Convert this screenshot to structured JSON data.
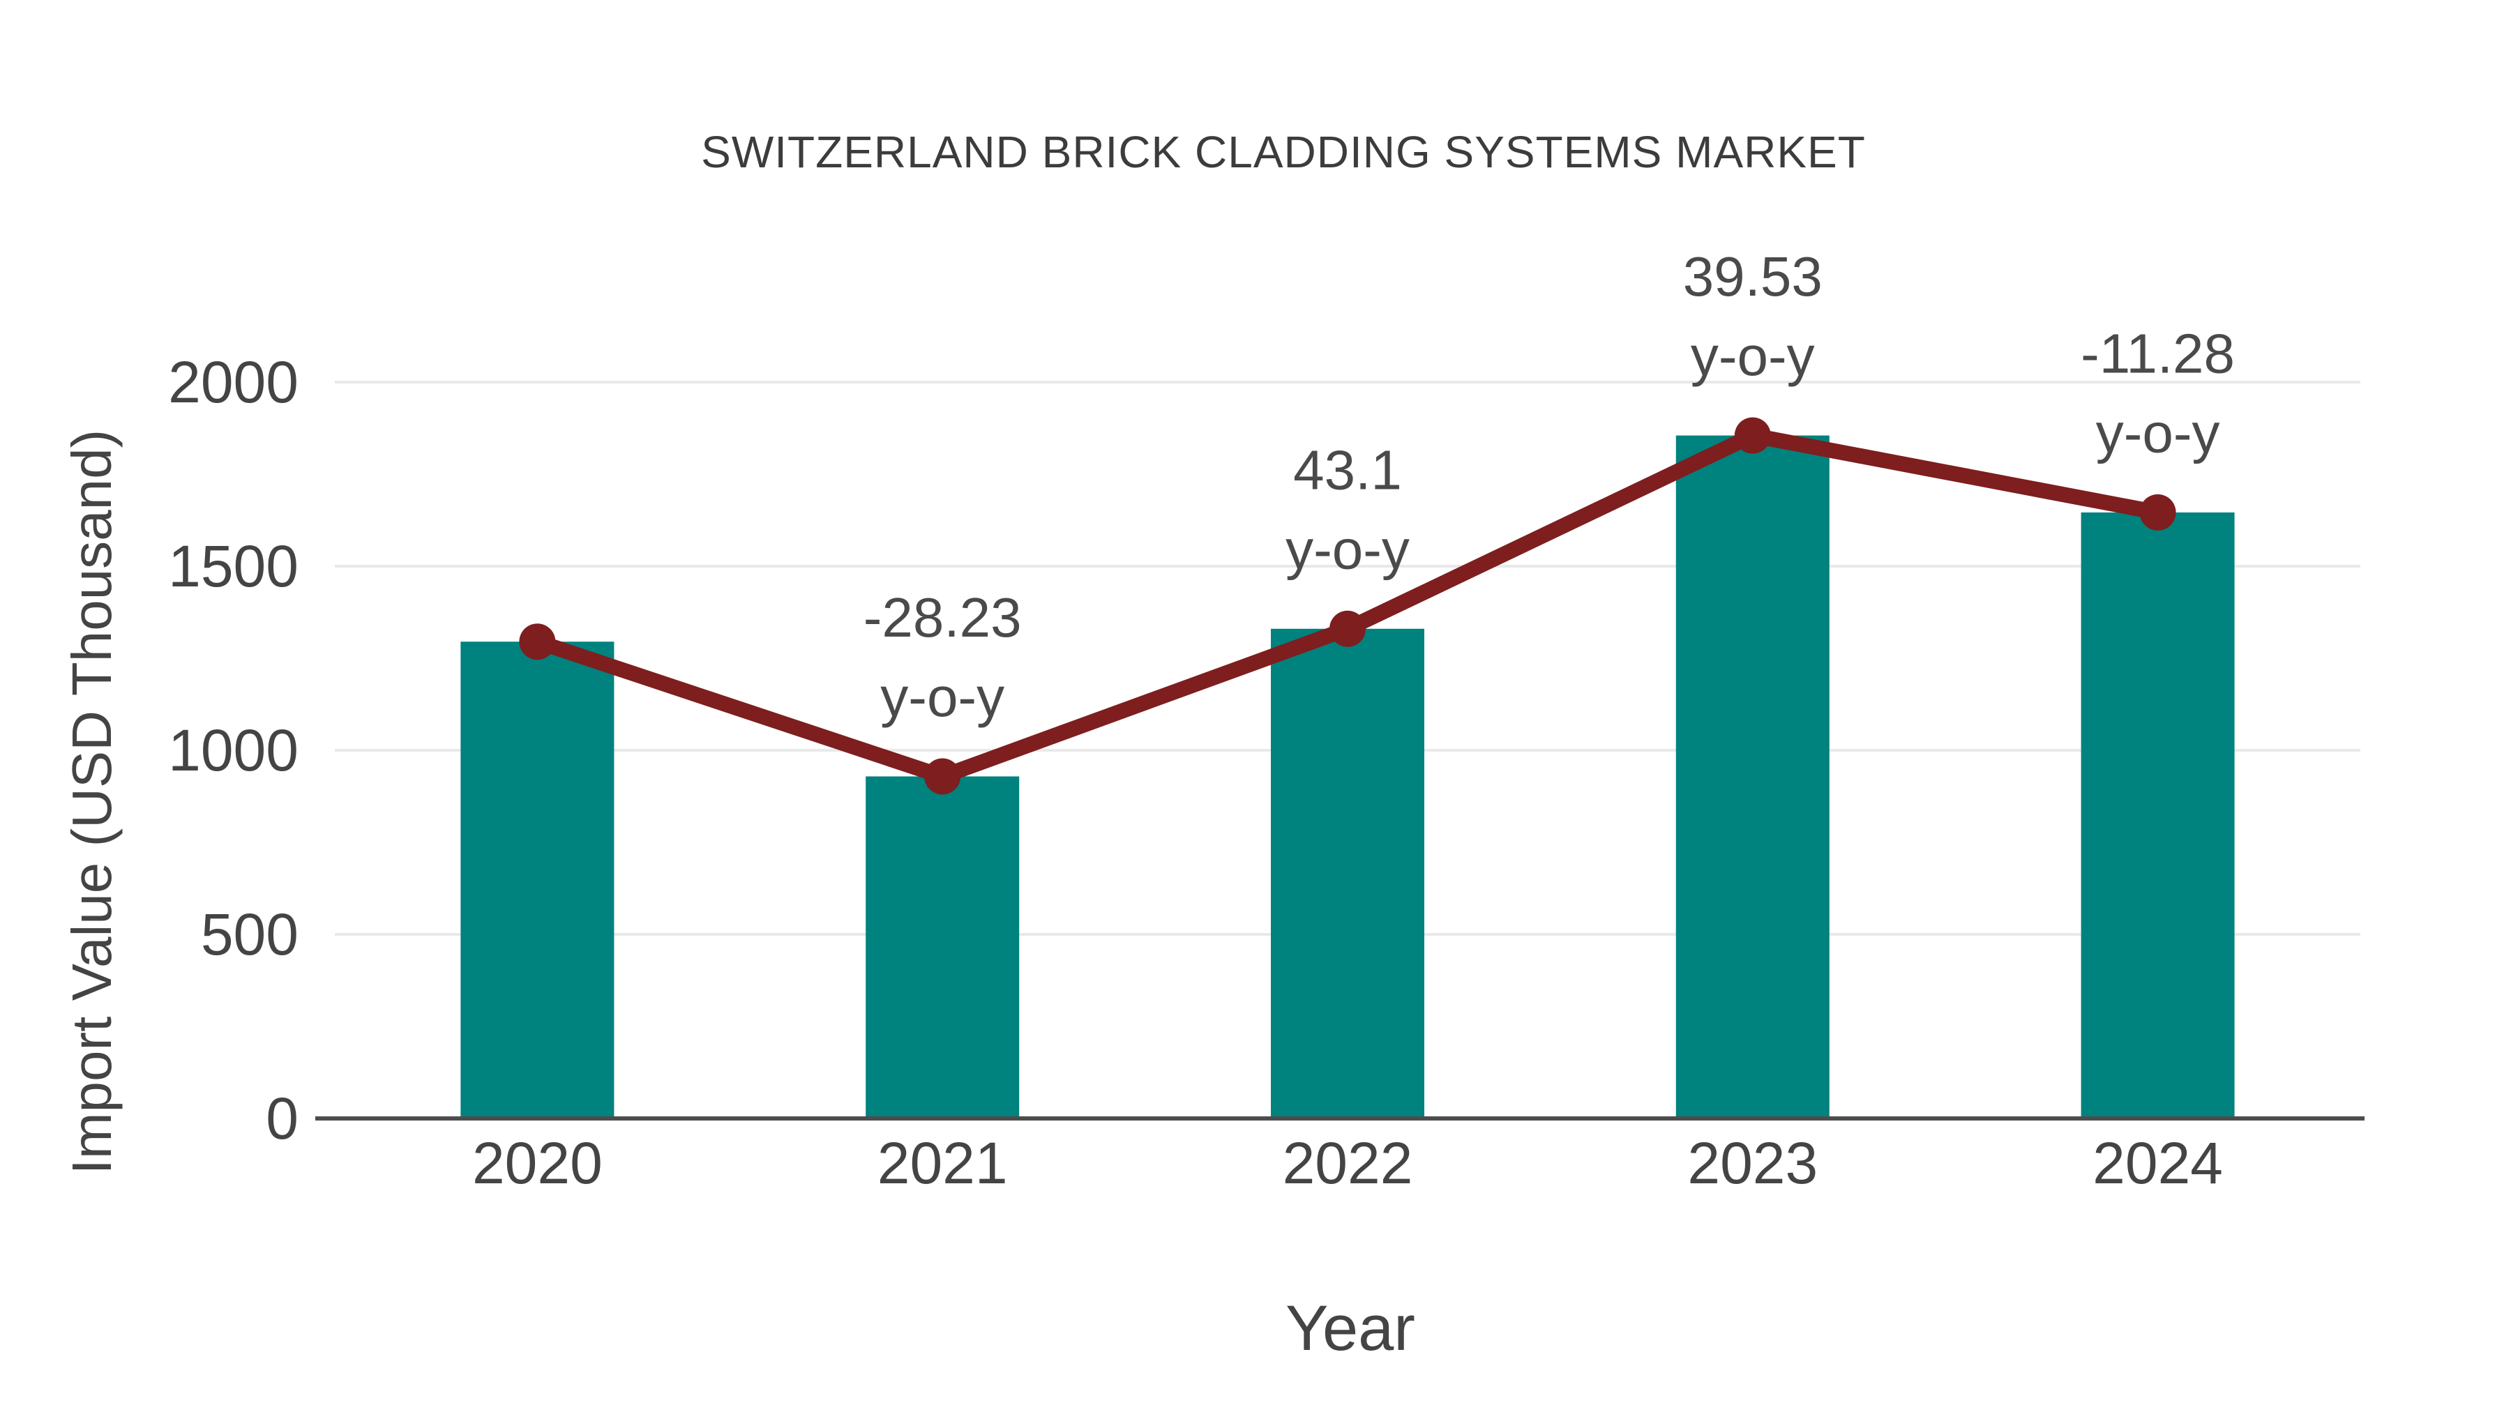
{
  "chart_data": {
    "type": "bar+line",
    "title": "SWITZERLAND BRICK CLADDING SYSTEMS MARKET",
    "xlabel": "Year",
    "ylabel": "Import Value (USD Thousand)",
    "categories": [
      "2020",
      "2021",
      "2022",
      "2023",
      "2024"
    ],
    "series": [
      {
        "name": "Import Value (USD Thousand) - bars",
        "type": "bar",
        "values": [
          1295,
          929,
          1330,
          1855,
          1646
        ]
      },
      {
        "name": "Import Value trend - line with markers",
        "type": "line",
        "values": [
          1295,
          929,
          1330,
          1855,
          1646
        ]
      }
    ],
    "yoy_percent": {
      "2021": -28.23,
      "2022": 43.1,
      "2023": 39.53,
      "2024": -11.28
    },
    "annotations": [
      {
        "category": "2021",
        "lines": [
          "-28.23",
          "y-o-y"
        ]
      },
      {
        "category": "2022",
        "lines": [
          "43.1",
          "y-o-y"
        ]
      },
      {
        "category": "2023",
        "lines": [
          "39.53",
          "y-o-y"
        ]
      },
      {
        "category": "2024",
        "lines": [
          "-11.28",
          "y-o-y"
        ]
      }
    ],
    "yticks": [
      0,
      500,
      1000,
      1500,
      2000
    ],
    "ylim": [
      0,
      2100
    ],
    "grid": true,
    "legend": false
  },
  "colors": {
    "bar": "#00827E",
    "line": "#7E1E1E",
    "marker": "#7E1E1E",
    "grid": "#E9E9E9",
    "axis": "#4D4D4D",
    "tick_text": "#444444",
    "annotation_text": "#4A4A4A",
    "title_text": "#3C3C3C",
    "background": "#FFFFFF"
  }
}
